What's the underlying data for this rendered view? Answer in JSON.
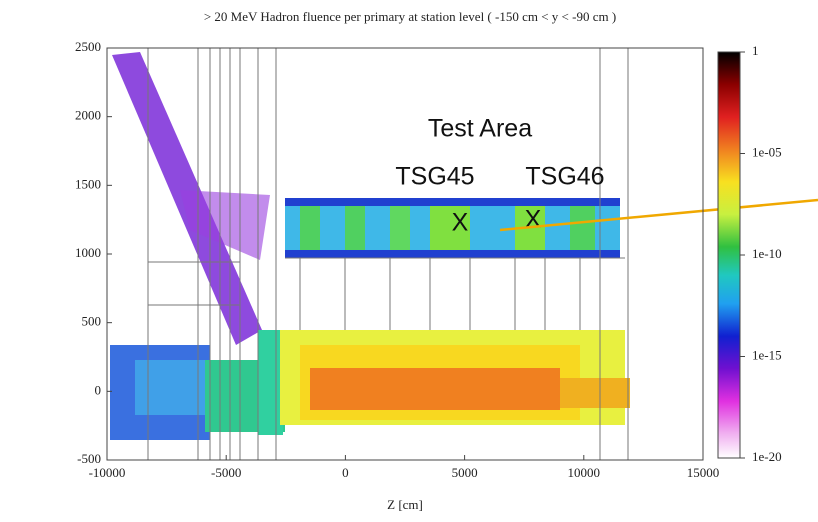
{
  "chart_data": {
    "type": "heatmap",
    "title": "> 20 MeV Hadron fluence per primary at station level ( -150 cm < y < -90 cm )",
    "x_label": "Z [cm]",
    "xlim": [
      -10000,
      15000
    ],
    "xticks": [
      -10000,
      -5000,
      0,
      5000,
      10000,
      15000
    ],
    "ylim": [
      -500,
      2500
    ],
    "yticks": [
      -500,
      0,
      500,
      1000,
      1500,
      2000,
      2500
    ],
    "colorbar": {
      "lim": [
        1e-20,
        1
      ],
      "log": true,
      "ticks": [
        1,
        {
          "value": 1e-05,
          "label": "1e-05"
        },
        {
          "value": 1e-10,
          "label": "1e-10"
        },
        {
          "value": 1e-15,
          "label": "1e-15"
        },
        {
          "value": 1e-20,
          "label": "1e-20"
        }
      ]
    },
    "annotations": [
      "Test Area",
      "TSG45",
      "TSG46"
    ],
    "markers": [
      "X",
      "X"
    ]
  }
}
